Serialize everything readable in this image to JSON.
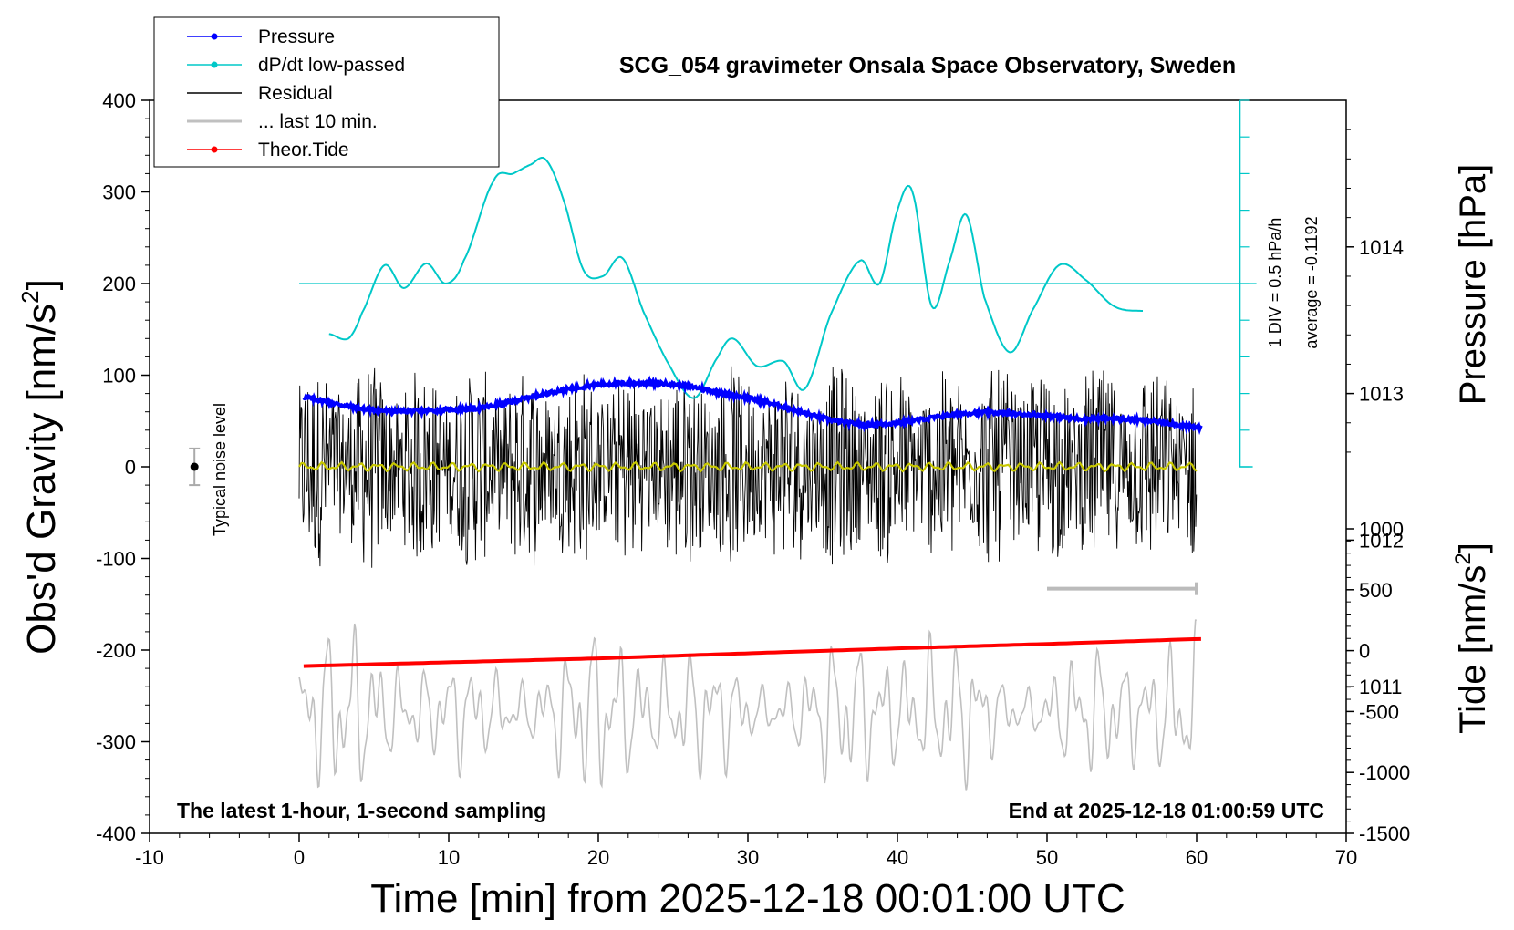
{
  "chart_data": {
    "type": "line",
    "title": "SCG_054 gravimeter Onsala Space Observatory, Sweden",
    "xlabel": "Time [min] from 2025-12-18 00:01:00 UTC",
    "ylabel_left": "Obs'd Gravity [nm/s",
    "ylabel_right_top": "Pressure [hPa]",
    "ylabel_right_bottom": "Tide [nm/s",
    "superscript": "2",
    "xlim": [
      -10,
      70
    ],
    "ylim_left": [
      -400,
      400
    ],
    "ylim_pressure": [
      1010,
      1015
    ],
    "ylim_tide": [
      -1500,
      1000
    ],
    "x_ticks": [
      "-10",
      "0",
      "10",
      "20",
      "30",
      "40",
      "50",
      "60",
      "70"
    ],
    "y_ticks_left": [
      "400",
      "300",
      "200",
      "100",
      "0",
      "-100",
      "-200",
      "-300",
      "-400"
    ],
    "pressure_ticks": [
      "1014",
      "1013",
      "1012",
      "1011"
    ],
    "tide_ticks": [
      "1000",
      "500",
      "0",
      "-500",
      "-1000",
      "-1500"
    ],
    "note_left": "The latest 1-hour, 1-second sampling",
    "note_right": "End at 2025-12-18 01:00:59 UTC",
    "noise_label": "Typical noise level",
    "dpdt_scale_label": "1 DIV = 0.5 hPa/h",
    "dpdt_average_label": "average = -0.1192",
    "legend": [
      {
        "label": "Pressure",
        "color": "#0000ff",
        "marker": true
      },
      {
        "label": "dP/dt low-passed",
        "color": "#00c8c8",
        "marker": true
      },
      {
        "label": "Residual",
        "color": "#000000",
        "marker": false
      },
      {
        "label": "... last 10 min.",
        "color": "#c0c0c0",
        "marker": false
      },
      {
        "label": "Theor.Tide",
        "color": "#ff0000",
        "marker": true
      }
    ],
    "series": [
      {
        "name": "Pressure",
        "axis": "pressure",
        "x": [
          0,
          2,
          4,
          6,
          8,
          10,
          12,
          14,
          16,
          18,
          20,
          22,
          24,
          26,
          28,
          30,
          32,
          34,
          36,
          38,
          40,
          42,
          44,
          46,
          48,
          50,
          52,
          54,
          56,
          58,
          60
        ],
        "values": [
          1012.98,
          1012.94,
          1012.9,
          1012.88,
          1012.88,
          1012.89,
          1012.9,
          1012.94,
          1012.99,
          1013.03,
          1013.06,
          1013.07,
          1013.07,
          1013.05,
          1013.01,
          1012.97,
          1012.92,
          1012.86,
          1012.81,
          1012.79,
          1012.8,
          1012.83,
          1012.86,
          1012.87,
          1012.86,
          1012.85,
          1012.83,
          1012.83,
          1012.82,
          1012.8,
          1012.77
        ]
      },
      {
        "name": "dP/dt low-passed",
        "axis": "dpdt",
        "x": [
          2,
          3.3,
          4.2,
          5.7,
          7,
          8.5,
          9.8,
          11,
          13,
          14.3,
          15.5,
          16.5,
          17.7,
          19,
          20.3,
          21.6,
          23,
          24.6,
          26.4,
          28,
          29,
          30.6,
          32.4,
          33.8,
          35.5,
          37.5,
          38.8,
          40,
          41,
          42.3,
          43.5,
          44.6,
          45.8,
          47.5,
          49,
          50.8,
          52.5,
          54.5,
          56.5
        ],
        "values": [
          145,
          140,
          168,
          220,
          195,
          222,
          200,
          225,
          312,
          320,
          330,
          335,
          290,
          215,
          208,
          228,
          170,
          115,
          75,
          120,
          140,
          110,
          115,
          85,
          165,
          225,
          200,
          280,
          300,
          175,
          225,
          275,
          185,
          125,
          170,
          220,
          205,
          175,
          170
        ]
      },
      {
        "name": "Residual",
        "axis": "gravity",
        "x": [
          0,
          60
        ],
        "values": [
          0,
          0
        ],
        "envelope_amplitude": [
          80,
          140
        ],
        "smoothed_trend": 0
      },
      {
        "name": "... last 10 min.",
        "axis": "tide",
        "x": [
          0,
          60
        ],
        "values": [
          -500,
          -500
        ],
        "amplitude": [
          -1400,
          250
        ]
      },
      {
        "name": "Theor.Tide",
        "axis": "tide",
        "x": [
          0,
          10,
          20,
          30,
          40,
          50,
          60
        ],
        "values": [
          -128,
          -96,
          -64,
          -22,
          18,
          55,
          95
        ]
      }
    ],
    "last10_marker": {
      "x_start": 50,
      "x_end": 60,
      "gravity": -133
    },
    "noise_level": {
      "x": -7,
      "center": 0,
      "halfwidth": 20
    },
    "dpdt_reference": 200,
    "grid": false,
    "legend_position": "top-left"
  }
}
